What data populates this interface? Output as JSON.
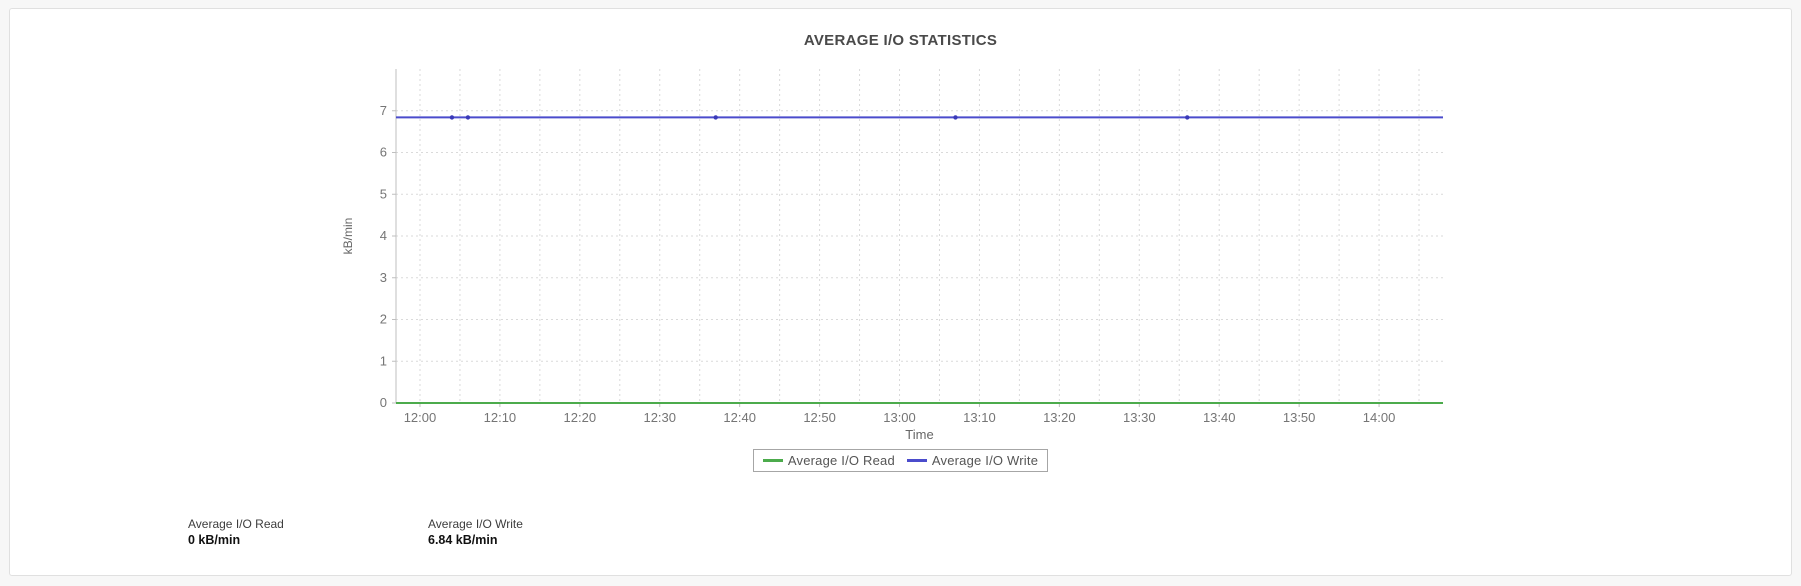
{
  "page": {
    "background": "#f7f7f7",
    "card_background": "#ffffff",
    "card_border": "#e0e0e0"
  },
  "chart_data": {
    "type": "line",
    "title": "AVERAGE I/O STATISTICS",
    "xlabel": "Time",
    "ylabel": "kB/min",
    "ylim": [
      0,
      8
    ],
    "yticks": [
      0,
      1,
      2,
      3,
      4,
      5,
      6,
      7
    ],
    "xticks": [
      "12:00",
      "12:10",
      "12:20",
      "12:30",
      "12:40",
      "12:50",
      "13:00",
      "13:10",
      "13:20",
      "13:30",
      "13:40",
      "13:50",
      "14:00"
    ],
    "xrange": [
      "11:57",
      "14:08"
    ],
    "minor_grid_minutes": 5,
    "grid": true,
    "grid_color": "#dadada",
    "axis_color": "#bfbfbf",
    "tick_label_color": "#757575",
    "axis_title_color": "#666666",
    "legend_position": "bottom",
    "series": [
      {
        "name": "Average I/O Read",
        "color": "#4cab4c",
        "value": 0,
        "x": [
          "11:57",
          "14:08"
        ],
        "y": [
          0,
          0
        ],
        "markers": []
      },
      {
        "name": "Average I/O Write",
        "color": "#4b4ccc",
        "marker_color": "#3a3ab8",
        "value": 6.84,
        "x": [
          "11:57",
          "14:08"
        ],
        "y": [
          6.84,
          6.84
        ],
        "markers": [
          "12:04",
          "12:06",
          "12:37",
          "13:07",
          "13:36"
        ]
      }
    ]
  },
  "stats": [
    {
      "label": "Average I/O Read",
      "value": "0 kB/min"
    },
    {
      "label": "Average I/O Write",
      "value": "6.84 kB/min"
    }
  ]
}
